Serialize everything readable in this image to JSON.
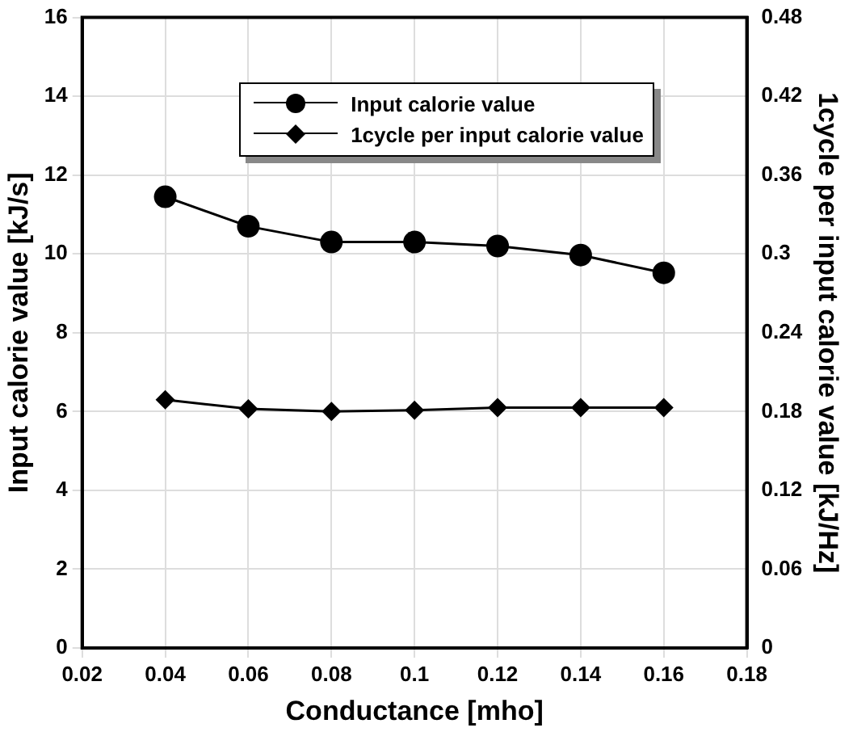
{
  "chart_data": {
    "type": "line",
    "xlabel": "Conductance [mho]",
    "ylabel": "Input calorie value [kJ/s]",
    "y2label": "1cycle per input calorie value [kJ/Hz]",
    "x": [
      0.04,
      0.06,
      0.08,
      0.1,
      0.12,
      0.14,
      0.16
    ],
    "series": [
      {
        "name": "Input calorie value",
        "color": "#000000",
        "marker": "circle",
        "values": [
          11.45,
          10.7,
          10.3,
          10.3,
          10.2,
          9.97,
          9.52
        ]
      },
      {
        "name": "1cycle per input calorie value",
        "color": "#000000",
        "marker": "diamond",
        "axis": "y2",
        "values": [
          0.189,
          0.182,
          0.18,
          0.181,
          0.183,
          0.183,
          0.183
        ]
      }
    ],
    "xlim": [
      0.02,
      0.18
    ],
    "xticks": [
      0.02,
      0.04,
      0.06,
      0.08,
      0.1,
      0.12,
      0.14,
      0.16,
      0.18
    ],
    "ylim": [
      0,
      16
    ],
    "yticks": [
      0,
      2,
      4,
      6,
      8,
      10,
      12,
      14,
      16
    ],
    "y2lim": [
      0,
      0.48
    ],
    "y2ticks": [
      0,
      0.06,
      0.12,
      0.18,
      0.24,
      0.3,
      0.36,
      0.42,
      0.48
    ],
    "grid": true,
    "legend": "top",
    "line_style": "solid"
  }
}
